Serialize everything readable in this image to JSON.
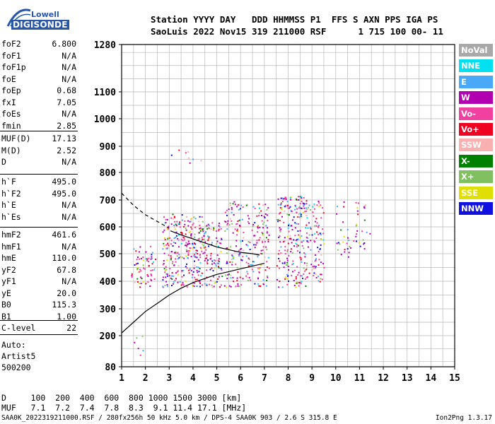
{
  "logo": {
    "line1": "Lowell",
    "line2": "DIGISONDE"
  },
  "header": {
    "line1": "Station YYYY DAY   DDD HHMMSS P1  FFS S AXN PPS IGA PS",
    "line2": "SaoLuis 2022 Nov15 319 211000 RSF      1 715 100 00- 11"
  },
  "params": {
    "group1": [
      {
        "k": "foF2",
        "v": "6.800"
      },
      {
        "k": "foF1",
        "v": "N/A"
      },
      {
        "k": "foF1p",
        "v": "N/A"
      },
      {
        "k": "foE",
        "v": "N/A"
      },
      {
        "k": "foEp",
        "v": "0.68"
      },
      {
        "k": "fxI",
        "v": "7.05"
      },
      {
        "k": "foEs",
        "v": "N/A"
      },
      {
        "k": "fmin",
        "v": "2.85"
      }
    ],
    "group2": [
      {
        "k": "MUF(D)",
        "v": "17.13"
      },
      {
        "k": "M(D)",
        "v": "2.52"
      },
      {
        "k": "D",
        "v": "N/A"
      }
    ],
    "group3": [
      {
        "k": "h`F",
        "v": "495.0"
      },
      {
        "k": "h`F2",
        "v": "495.0"
      },
      {
        "k": "h`E",
        "v": "N/A"
      },
      {
        "k": "h`Es",
        "v": "N/A"
      }
    ],
    "group4": [
      {
        "k": "hmF2",
        "v": "461.6"
      },
      {
        "k": "hmF1",
        "v": "N/A"
      },
      {
        "k": "hmE",
        "v": "110.0"
      },
      {
        "k": "yF2",
        "v": "67.8"
      },
      {
        "k": "yF1",
        "v": "N/A"
      },
      {
        "k": "yE",
        "v": "20.0"
      },
      {
        "k": "B0",
        "v": "115.3"
      },
      {
        "k": "B1",
        "v": "1.00"
      }
    ],
    "group5": [
      {
        "k": "C-level",
        "v": "22"
      }
    ]
  },
  "auto": {
    "line1": "Auto:",
    "line2": "Artist5",
    "line3": "500200"
  },
  "legend": [
    {
      "label": "NoVal",
      "color": "#a8a8a8"
    },
    {
      "label": "NNE",
      "color": "#00e0f0"
    },
    {
      "label": "E",
      "color": "#4aa8f8"
    },
    {
      "label": "W",
      "color": "#b000b0"
    },
    {
      "label": "Vo-",
      "color": "#f040a0"
    },
    {
      "label": "Vo+",
      "color": "#f00020"
    },
    {
      "label": "SSW",
      "color": "#f8b0b0"
    },
    {
      "label": "X-",
      "color": "#008000"
    },
    {
      "label": "X+",
      "color": "#80c060"
    },
    {
      "label": "SSE",
      "color": "#e0e000"
    },
    {
      "label": "NNW",
      "color": "#1010e0"
    }
  ],
  "tables": {
    "d_row": "D     100  200  400  600  800 1000 1500 3000 [km]",
    "muf_row": "MUF   7.1  7.2  7.4  7.8  8.3  9.1 11.4 17.1 [MHz]"
  },
  "footer": "SAA0K_2022319211000.RSF / 280fx256h 50 kHz 5.0 km / DPS-4 SAA0K 903 / 2.6 S 315.8 E",
  "version": "Ion2Png 1.3.17",
  "chart_data": {
    "type": "scatter",
    "title": "",
    "xlabel": "",
    "ylabel": "",
    "xlim": [
      1,
      15
    ],
    "ylim": [
      80,
      1280
    ],
    "x_ticks": [
      1,
      2,
      3,
      4,
      5,
      6,
      7,
      8,
      9,
      10,
      11,
      12,
      13,
      14,
      15
    ],
    "y_ticks": [
      80,
      200,
      300,
      400,
      500,
      600,
      700,
      800,
      900,
      1000,
      1100,
      1280
    ],
    "grid": true,
    "series": [
      {
        "kind": "profile",
        "x": [
          3.05,
          3.5,
          4.0,
          4.5,
          5.0,
          5.5,
          6.0,
          6.5,
          6.8
        ],
        "y": [
          585,
          570,
          555,
          540,
          525,
          515,
          505,
          500,
          495
        ]
      },
      {
        "kind": "lower-curve",
        "x": [
          1.0,
          1.5,
          2.0,
          2.5,
          3.0,
          3.5,
          4.0,
          4.5,
          5.0,
          5.5,
          6.0,
          6.5,
          7.0
        ],
        "y": [
          210,
          250,
          290,
          320,
          350,
          375,
          395,
          410,
          425,
          435,
          445,
          455,
          465
        ]
      },
      {
        "kind": "dashed-curve",
        "x": [
          1.0,
          1.5,
          2.0,
          2.5,
          3.0
        ],
        "y": [
          725,
          680,
          645,
          620,
          595
        ]
      }
    ],
    "echo_regions": [
      {
        "x": [
          1.4,
          2.4
        ],
        "y": [
          380,
          530
        ],
        "density": 0.5
      },
      {
        "x": [
          2.7,
          4.4
        ],
        "y": [
          380,
          650
        ],
        "density": 0.7
      },
      {
        "x": [
          4.4,
          5.2
        ],
        "y": [
          380,
          620
        ],
        "density": 0.6
      },
      {
        "x": [
          5.3,
          6.1
        ],
        "y": [
          380,
          700
        ],
        "density": 0.45
      },
      {
        "x": [
          6.2,
          7.2
        ],
        "y": [
          380,
          690
        ],
        "density": 0.45
      },
      {
        "x": [
          7.5,
          8.8
        ],
        "y": [
          380,
          720
        ],
        "density": 0.6
      },
      {
        "x": [
          8.8,
          9.5
        ],
        "y": [
          400,
          700
        ],
        "density": 0.45
      },
      {
        "x": [
          10.0,
          10.6
        ],
        "y": [
          480,
          700
        ],
        "density": 0.2
      },
      {
        "x": [
          10.7,
          11.5
        ],
        "y": [
          520,
          700
        ],
        "density": 0.2
      },
      {
        "x": [
          3.0,
          5.0
        ],
        "y": [
          820,
          890
        ],
        "density": 0.06
      },
      {
        "x": [
          1.5,
          1.9
        ],
        "y": [
          90,
          230
        ],
        "density": 0.12
      }
    ]
  }
}
